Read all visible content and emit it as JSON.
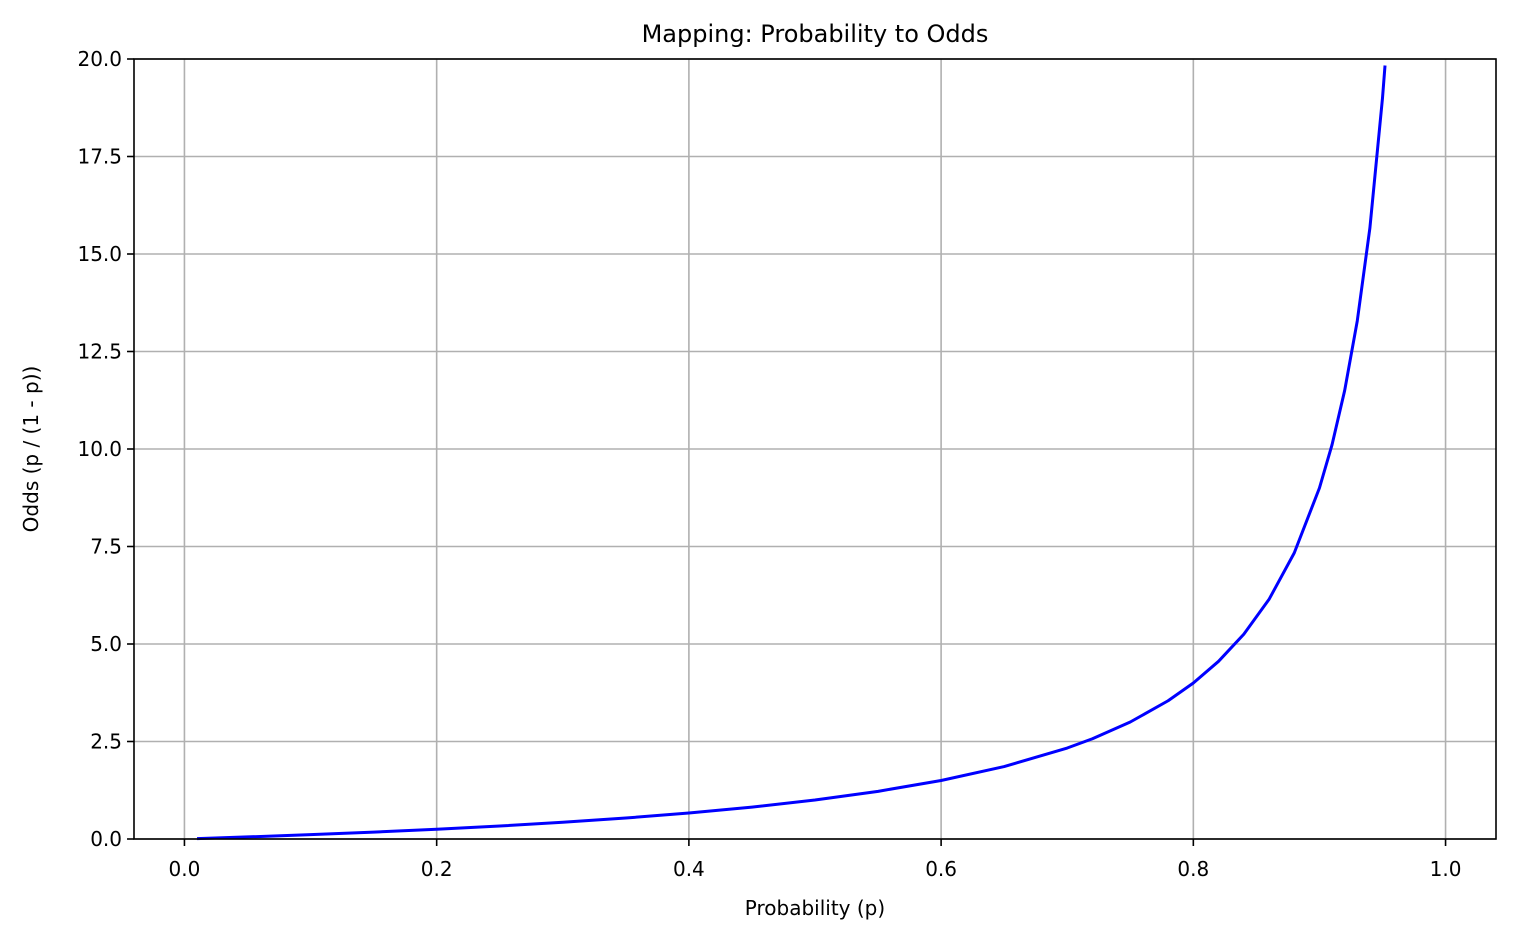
{
  "chart_data": {
    "type": "line",
    "title": "Mapping: Probability to Odds",
    "xlabel": "Probability (p)",
    "ylabel": "Odds (p / (1 - p))",
    "xlim": [
      -0.04,
      1.04
    ],
    "ylim": [
      0,
      20
    ],
    "grid": true,
    "x_ticks": [
      0.0,
      0.2,
      0.4,
      0.6,
      0.8,
      1.0
    ],
    "x_tick_labels": [
      "0.0",
      "0.2",
      "0.4",
      "0.6",
      "0.8",
      "1.0"
    ],
    "y_ticks": [
      0.0,
      2.5,
      5.0,
      7.5,
      10.0,
      12.5,
      15.0,
      17.5,
      20.0
    ],
    "y_tick_labels": [
      "0.0",
      "2.5",
      "5.0",
      "7.5",
      "10.0",
      "12.5",
      "15.0",
      "17.5",
      "20.0"
    ],
    "series": [
      {
        "color": "#0000ff",
        "x": [
          0.01,
          0.05,
          0.1,
          0.15,
          0.2,
          0.25,
          0.3,
          0.35,
          0.4,
          0.45,
          0.5,
          0.55,
          0.6,
          0.65,
          0.7,
          0.72,
          0.75,
          0.78,
          0.8,
          0.82,
          0.84,
          0.86,
          0.88,
          0.9,
          0.91,
          0.92,
          0.93,
          0.94,
          0.95,
          0.952
        ],
        "y": [
          0.01,
          0.053,
          0.111,
          0.176,
          0.25,
          0.333,
          0.429,
          0.538,
          0.667,
          0.818,
          1.0,
          1.222,
          1.5,
          1.857,
          2.333,
          2.571,
          3.0,
          3.545,
          4.0,
          4.556,
          5.25,
          6.143,
          7.333,
          9.0,
          10.111,
          11.5,
          13.286,
          15.667,
          19.0,
          19.833
        ]
      }
    ]
  }
}
